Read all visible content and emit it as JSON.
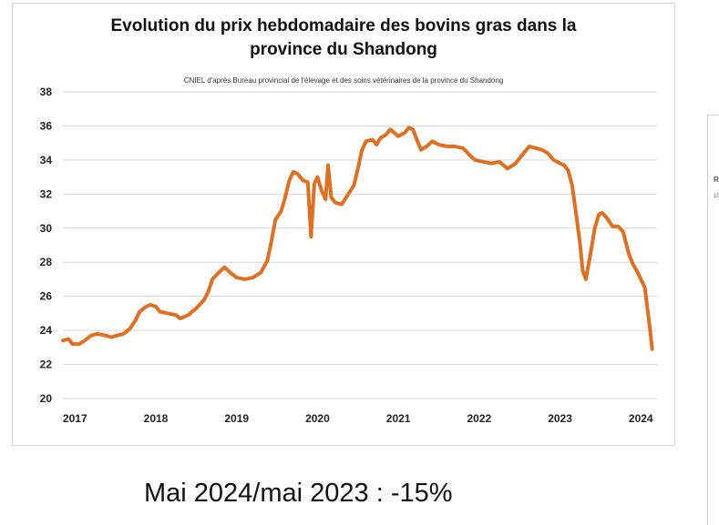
{
  "caption": "Mai 2024/mai 2023 : -15%",
  "chart_data": {
    "type": "line",
    "title_line1": "Evolution du prix hebdomadaire  des bovins gras dans la",
    "title_line2": "province du Shandong",
    "subtitle": "CNIEL d'après Bureau provincial de l'élevage et des soins vétérinaires de la province du Shandong",
    "xlabel": "",
    "ylabel": "",
    "xlim": [
      2016.85,
      2024.2
    ],
    "ylim": [
      20,
      38
    ],
    "yticks": [
      20,
      22,
      24,
      26,
      28,
      30,
      32,
      34,
      36,
      38
    ],
    "xticks": [
      2017,
      2018,
      2019,
      2020,
      2021,
      2022,
      2023,
      2024
    ],
    "xtick_labels": [
      "2017",
      "2018",
      "2019",
      "2020",
      "2021",
      "2022",
      "2023",
      "2024"
    ],
    "grid": "horizontal",
    "line_color": "#E07020",
    "series": [
      {
        "name": "",
        "points": [
          [
            2016.85,
            23.4
          ],
          [
            2016.92,
            23.5
          ],
          [
            2016.97,
            23.2
          ],
          [
            2017.05,
            23.2
          ],
          [
            2017.12,
            23.4
          ],
          [
            2017.2,
            23.7
          ],
          [
            2017.28,
            23.8
          ],
          [
            2017.38,
            23.7
          ],
          [
            2017.45,
            23.6
          ],
          [
            2017.52,
            23.7
          ],
          [
            2017.6,
            23.8
          ],
          [
            2017.68,
            24.1
          ],
          [
            2017.75,
            24.6
          ],
          [
            2017.8,
            25.1
          ],
          [
            2017.88,
            25.4
          ],
          [
            2017.93,
            25.5
          ],
          [
            2018.0,
            25.4
          ],
          [
            2018.05,
            25.1
          ],
          [
            2018.15,
            25.0
          ],
          [
            2018.25,
            24.9
          ],
          [
            2018.3,
            24.7
          ],
          [
            2018.4,
            24.9
          ],
          [
            2018.5,
            25.3
          ],
          [
            2018.6,
            25.8
          ],
          [
            2018.65,
            26.3
          ],
          [
            2018.7,
            27.0
          ],
          [
            2018.8,
            27.5
          ],
          [
            2018.85,
            27.7
          ],
          [
            2018.92,
            27.4
          ],
          [
            2019.0,
            27.1
          ],
          [
            2019.1,
            27.0
          ],
          [
            2019.2,
            27.1
          ],
          [
            2019.3,
            27.4
          ],
          [
            2019.38,
            28.1
          ],
          [
            2019.42,
            29.0
          ],
          [
            2019.48,
            30.5
          ],
          [
            2019.55,
            31.0
          ],
          [
            2019.6,
            31.8
          ],
          [
            2019.65,
            32.8
          ],
          [
            2019.7,
            33.3
          ],
          [
            2019.75,
            33.2
          ],
          [
            2019.82,
            32.8
          ],
          [
            2019.88,
            32.7
          ],
          [
            2019.92,
            29.5
          ],
          [
            2019.96,
            32.6
          ],
          [
            2020.0,
            33.0
          ],
          [
            2020.05,
            32.2
          ],
          [
            2020.1,
            31.7
          ],
          [
            2020.13,
            33.7
          ],
          [
            2020.17,
            31.8
          ],
          [
            2020.22,
            31.5
          ],
          [
            2020.3,
            31.4
          ],
          [
            2020.38,
            32.0
          ],
          [
            2020.45,
            32.5
          ],
          [
            2020.5,
            33.5
          ],
          [
            2020.55,
            34.6
          ],
          [
            2020.6,
            35.1
          ],
          [
            2020.68,
            35.2
          ],
          [
            2020.73,
            34.9
          ],
          [
            2020.78,
            35.3
          ],
          [
            2020.85,
            35.5
          ],
          [
            2020.9,
            35.8
          ],
          [
            2020.95,
            35.6
          ],
          [
            2021.0,
            35.4
          ],
          [
            2021.08,
            35.6
          ],
          [
            2021.13,
            35.9
          ],
          [
            2021.18,
            35.8
          ],
          [
            2021.22,
            35.3
          ],
          [
            2021.28,
            34.6
          ],
          [
            2021.35,
            34.8
          ],
          [
            2021.42,
            35.1
          ],
          [
            2021.5,
            34.9
          ],
          [
            2021.6,
            34.8
          ],
          [
            2021.7,
            34.8
          ],
          [
            2021.8,
            34.7
          ],
          [
            2021.9,
            34.2
          ],
          [
            2021.95,
            34.0
          ],
          [
            2022.05,
            33.9
          ],
          [
            2022.15,
            33.8
          ],
          [
            2022.25,
            33.9
          ],
          [
            2022.35,
            33.5
          ],
          [
            2022.45,
            33.8
          ],
          [
            2022.55,
            34.4
          ],
          [
            2022.62,
            34.8
          ],
          [
            2022.7,
            34.7
          ],
          [
            2022.78,
            34.6
          ],
          [
            2022.85,
            34.4
          ],
          [
            2022.92,
            34.0
          ],
          [
            2023.0,
            33.8
          ],
          [
            2023.05,
            33.7
          ],
          [
            2023.1,
            33.4
          ],
          [
            2023.15,
            32.5
          ],
          [
            2023.2,
            30.8
          ],
          [
            2023.25,
            29.0
          ],
          [
            2023.28,
            27.5
          ],
          [
            2023.32,
            27.0
          ],
          [
            2023.38,
            28.6
          ],
          [
            2023.43,
            30.0
          ],
          [
            2023.48,
            30.8
          ],
          [
            2023.52,
            30.9
          ],
          [
            2023.58,
            30.6
          ],
          [
            2023.65,
            30.1
          ],
          [
            2023.72,
            30.1
          ],
          [
            2023.78,
            29.8
          ],
          [
            2023.85,
            28.5
          ],
          [
            2023.9,
            27.9
          ],
          [
            2023.95,
            27.5
          ],
          [
            2024.0,
            27.0
          ],
          [
            2024.05,
            26.5
          ],
          [
            2024.08,
            25.3
          ],
          [
            2024.11,
            24.2
          ],
          [
            2024.14,
            22.9
          ]
        ]
      }
    ]
  },
  "side_panel": {
    "label_r": "R",
    "label_10": "10"
  }
}
